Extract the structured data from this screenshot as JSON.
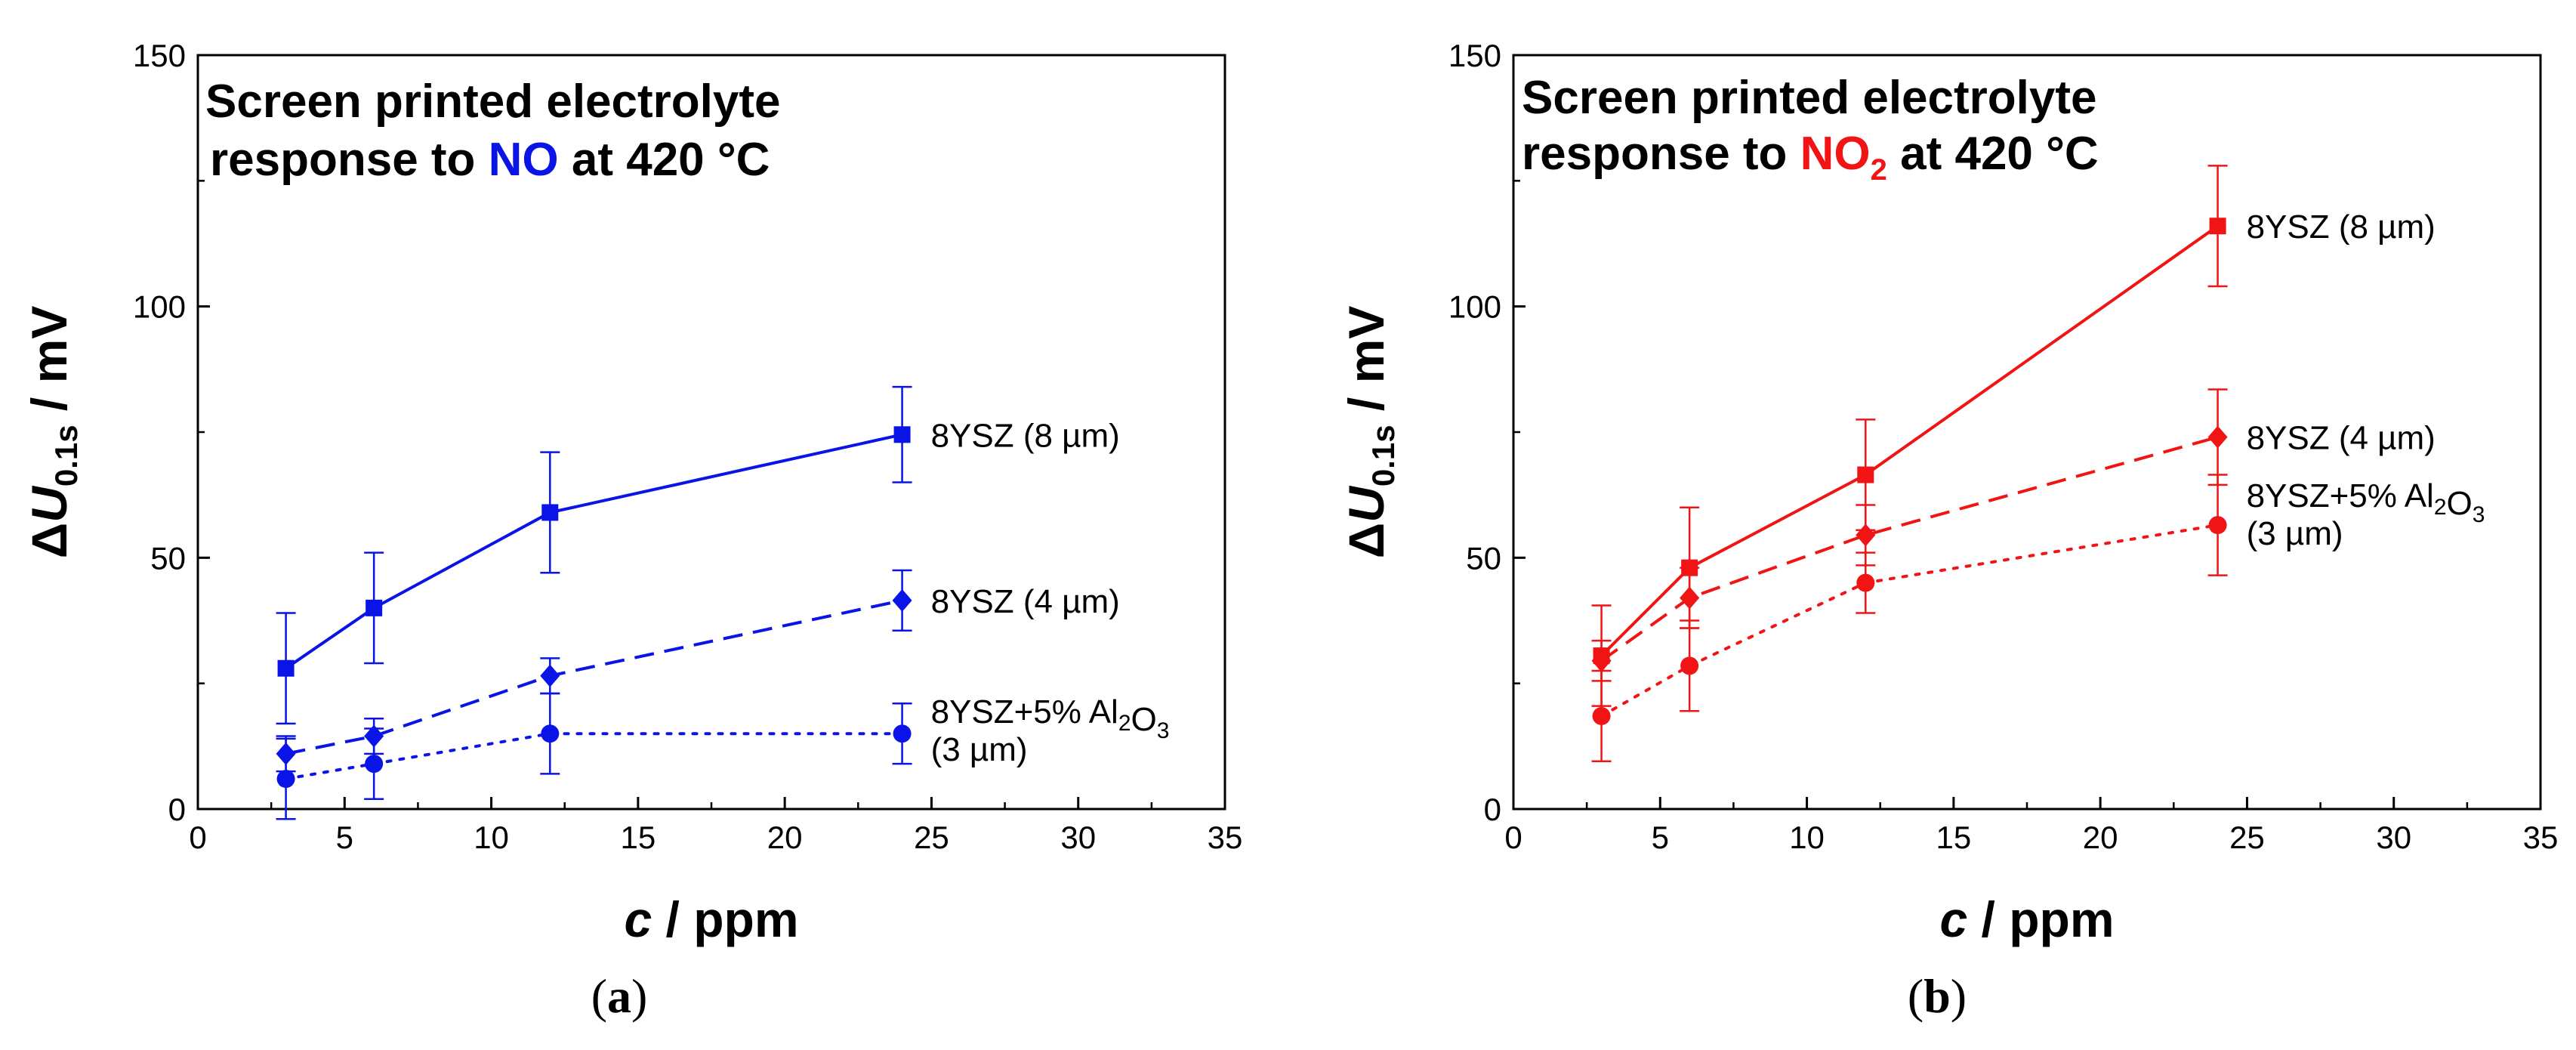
{
  "panels": [
    {
      "caption_letter": "a",
      "chart_data": {
        "type": "line",
        "title_line1": "Screen printed electrolyte",
        "title_line2_pre": "response to ",
        "title_gas": "NO",
        "title_gas_sub": "",
        "title_line2_post": " at 420 °C",
        "title_gas_color": "#0a14e6",
        "color": "#0a14e6",
        "xlabel_var": "c",
        "xlabel_unit": " / ppm",
        "ylabel_delta": "Δ",
        "ylabel_var": "U",
        "ylabel_sub": "0.1s",
        "ylabel_unit": " / mV",
        "xlim": [
          0,
          35
        ],
        "ylim": [
          0,
          150
        ],
        "xticks": [
          0,
          5,
          10,
          15,
          20,
          25,
          30,
          35
        ],
        "yticks": [
          0,
          50,
          100,
          150
        ],
        "x": [
          3,
          6,
          12,
          24
        ],
        "series": [
          {
            "name": "8YSZ (8 µm)",
            "label_line1_pre": "8YSZ (8 µm)",
            "label_line1_sub": "",
            "label_line1_post": "",
            "label_line1_sub2": "",
            "label_line2": "",
            "marker": "square",
            "dash": "solid",
            "values": [
              28,
              40,
              59,
              74.5
            ],
            "errors": [
              11,
              11,
              12,
              9.5
            ]
          },
          {
            "name": "8YSZ (4 µm)",
            "label_line1_pre": "8YSZ (4 µm)",
            "label_line1_sub": "",
            "label_line1_post": "",
            "label_line1_sub2": "",
            "label_line2": "",
            "marker": "diamond",
            "dash": "dashed",
            "values": [
              11,
              14.5,
              26.5,
              41.5
            ],
            "errors": [
              3.5,
              3.5,
              3.5,
              6
            ]
          },
          {
            "name": "8YSZ+5% Al2O3 (3 µm)",
            "label_line1_pre": "8YSZ+5% Al",
            "label_line1_sub": "2",
            "label_line1_post": "O",
            "label_line1_sub2": "3",
            "label_line2": "(3 µm)",
            "marker": "circle",
            "dash": "dotted",
            "values": [
              6,
              9,
              15,
              15
            ],
            "errors": [
              8,
              7,
              8,
              6
            ]
          }
        ]
      }
    },
    {
      "caption_letter": "b",
      "chart_data": {
        "type": "line",
        "title_line1": "Screen printed electrolyte",
        "title_line2_pre": "response to ",
        "title_gas": "NO",
        "title_gas_sub": "2",
        "title_line2_post": " at 420 °C",
        "title_gas_color": "#f01414",
        "color": "#f01414",
        "xlabel_var": "c",
        "xlabel_unit": " / ppm",
        "ylabel_delta": "Δ",
        "ylabel_var": "U",
        "ylabel_sub": "0.1s",
        "ylabel_unit": " / mV",
        "xlim": [
          0,
          35
        ],
        "ylim": [
          0,
          150
        ],
        "xticks": [
          0,
          5,
          10,
          15,
          20,
          25,
          30,
          35
        ],
        "yticks": [
          0,
          50,
          100,
          150
        ],
        "x": [
          3,
          6,
          12,
          24
        ],
        "series": [
          {
            "name": "8YSZ (8 µm)",
            "label_line1_pre": "8YSZ (8 µm)",
            "label_line1_sub": "",
            "label_line1_post": "",
            "label_line1_sub2": "",
            "label_line2": "",
            "marker": "square",
            "dash": "solid",
            "values": [
              30.5,
              48,
              66.5,
              116
            ],
            "errors": [
              10,
              12,
              11,
              12
            ]
          },
          {
            "name": "8YSZ (4 µm)",
            "label_line1_pre": "8YSZ (4 µm)",
            "label_line1_sub": "",
            "label_line1_post": "",
            "label_line1_sub2": "",
            "label_line2": "",
            "marker": "diamond",
            "dash": "dashed",
            "values": [
              29.5,
              42,
              54.5,
              74
            ],
            "errors": [
              4,
              6,
              6,
              9.5
            ]
          },
          {
            "name": "8YSZ+5% Al2O3 (3 µm)",
            "label_line1_pre": "8YSZ+5% Al",
            "label_line1_sub": "2",
            "label_line1_post": "O",
            "label_line1_sub2": "3",
            "label_line2": "(3 µm)",
            "marker": "circle",
            "dash": "dotted",
            "values": [
              18.5,
              28.5,
              45,
              56.5
            ],
            "errors": [
              9,
              9,
              6,
              10
            ]
          }
        ]
      }
    }
  ]
}
